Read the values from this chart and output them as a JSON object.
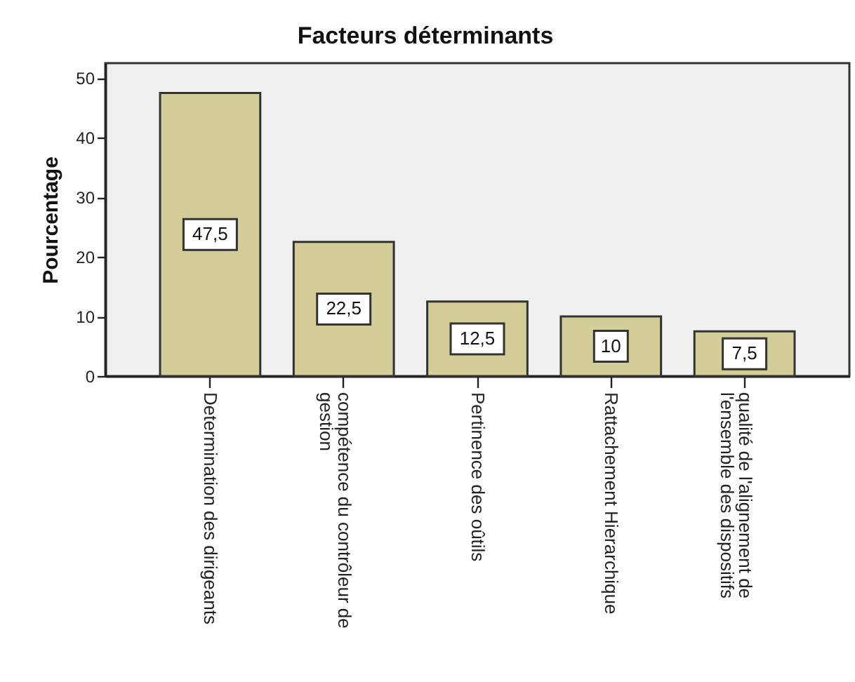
{
  "chart_data": {
    "type": "bar",
    "title": "Facteurs déterminants",
    "ylabel": "Pourcentage",
    "categories": [
      "Determination des dirigeants",
      "compétence du contrôleur de gestion",
      "Pertinence des oûtils",
      "Rattachement Hierarchique",
      "qualité de l'alignement de l'ensemble des dispositifs"
    ],
    "values": [
      47.5,
      22.5,
      12.5,
      10,
      7.5
    ],
    "value_labels": [
      "47,5",
      "22,5",
      "12,5",
      "10",
      "7,5"
    ],
    "color": "#d3ce98",
    "ylim": [
      0,
      52.5
    ],
    "yticks": [
      0,
      10,
      20,
      30,
      40,
      50
    ]
  }
}
